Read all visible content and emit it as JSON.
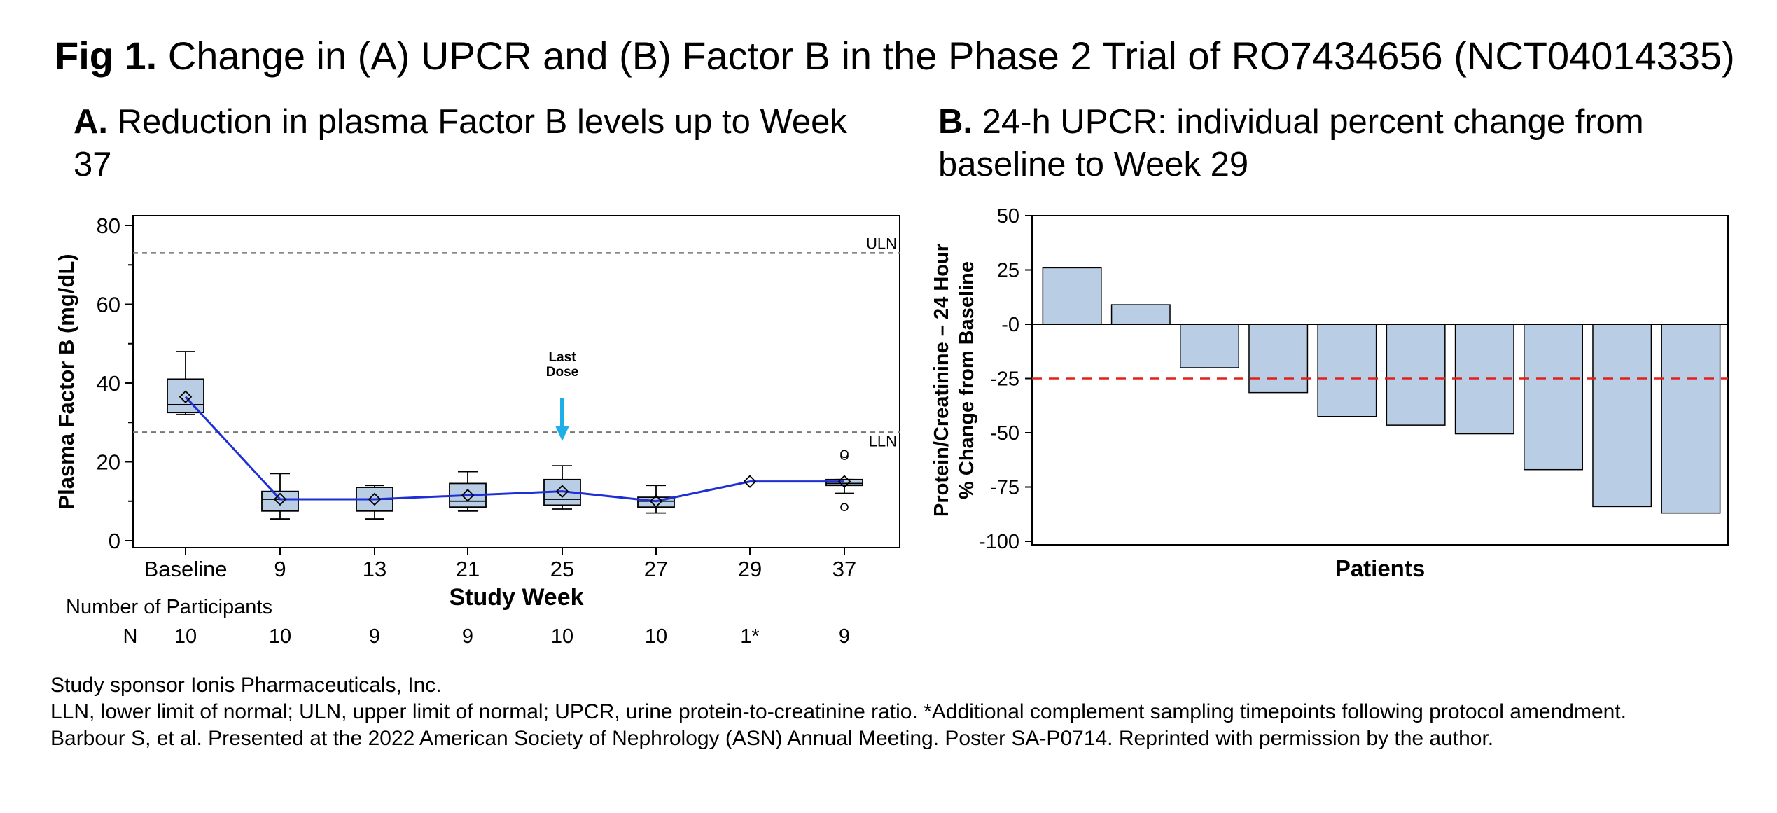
{
  "figure": {
    "label": "Fig 1.",
    "title": "Change in (A) UPCR and (B) Factor B in the Phase 2 Trial of RO7434656 (NCT04014335)"
  },
  "chart_data": [
    {
      "type": "box",
      "panel_label": "A.",
      "title": "Reduction in plasma Factor B levels up to Week 37",
      "xlabel": "Study Week",
      "ylabel": "Plasma Factor B (mg/dL)",
      "ylim": [
        0,
        80
      ],
      "yticks": [
        0,
        20,
        40,
        60,
        80
      ],
      "categories": [
        "Baseline",
        "9",
        "13",
        "21",
        "25",
        "27",
        "29",
        "37"
      ],
      "boxes": [
        {
          "min": 32,
          "q1": 32.5,
          "median": 34.5,
          "q3": 41,
          "max": 48,
          "mean": 36.5,
          "outliers": []
        },
        {
          "min": 5.5,
          "q1": 7.5,
          "median": 10.5,
          "q3": 12.5,
          "max": 17,
          "mean": 10.5,
          "outliers": []
        },
        {
          "min": 5.5,
          "q1": 7.5,
          "median": 10.5,
          "q3": 13.5,
          "max": 14,
          "mean": 10.5,
          "outliers": []
        },
        {
          "min": 7.5,
          "q1": 8.5,
          "median": 10,
          "q3": 14.5,
          "max": 17.5,
          "mean": 11.5,
          "outliers": []
        },
        {
          "min": 8,
          "q1": 9,
          "median": 10.5,
          "q3": 15.5,
          "max": 19,
          "mean": 12.5,
          "outliers": []
        },
        {
          "min": 7,
          "q1": 8.5,
          "median": 10,
          "q3": 11,
          "max": 14,
          "mean": 10,
          "outliers": []
        },
        {
          "min": null,
          "q1": null,
          "median": null,
          "q3": null,
          "max": null,
          "mean": 15,
          "outliers": []
        },
        {
          "min": 12,
          "q1": 14,
          "median": 14.5,
          "q3": 15.5,
          "max": 15.5,
          "mean": 15,
          "outliers": [
            8.5,
            21.5,
            22
          ]
        }
      ],
      "mean_line_color": "#1F2FD6",
      "box_fill": "#B9CDE5",
      "reference_lines": [
        {
          "label": "ULN",
          "value": 73
        },
        {
          "label": "LLN",
          "value": 27.5
        }
      ],
      "annotation": {
        "text_line1": "Last",
        "text_line2": "Dose",
        "category": "25",
        "arrow_color": "#1EAEE8"
      },
      "participants": {
        "heading": "Number of Participants",
        "row_label": "N",
        "counts": [
          "10",
          "10",
          "9",
          "9",
          "10",
          "10",
          "1*",
          "9"
        ]
      }
    },
    {
      "type": "bar",
      "panel_label": "B.",
      "title": "24-h UPCR: individual percent change from baseline to Week 29",
      "xlabel": "Patients",
      "ylabel_line1": "Protein/Creatinine – 24 Hour",
      "ylabel_line2": "% Change from Baseline",
      "ylim": [
        -100,
        50
      ],
      "yticks": [
        50,
        25,
        0,
        -25,
        -50,
        -75,
        -100
      ],
      "ytick_labels": [
        "50",
        "25",
        "-0",
        "-25",
        "-50",
        "-75",
        "-100"
      ],
      "values": [
        26,
        9,
        -20,
        -31.5,
        -42.5,
        -46.5,
        -50.5,
        -67,
        -84,
        -87
      ],
      "bar_fill": "#B9CDE5",
      "reference_line": {
        "value": -25,
        "color": "#E0201B"
      }
    }
  ],
  "footer": {
    "line1": "Study sponsor Ionis Pharmaceuticals, Inc.",
    "line2": "LLN, lower limit of normal; ULN, upper limit of normal; UPCR, urine protein-to-creatinine ratio. *Additional complement sampling timepoints following protocol amendment.",
    "line3": "Barbour S, et al. Presented at the 2022 American Society of Nephrology (ASN) Annual Meeting. Poster SA-P0714. Reprinted with permission by the author."
  }
}
